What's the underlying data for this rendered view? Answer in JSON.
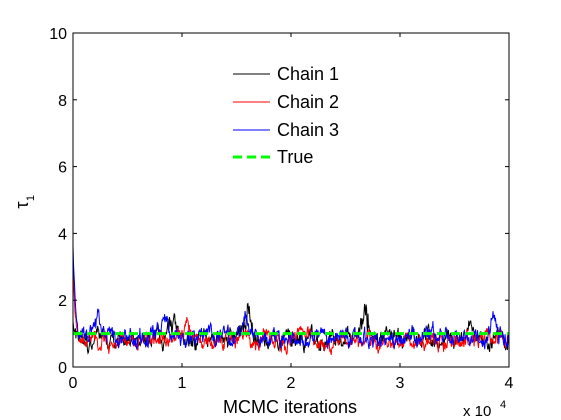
{
  "chart_data": {
    "type": "line",
    "title": "",
    "xlabel": "MCMC iterations",
    "ylabel": "τ",
    "ylabel_subscript": "1",
    "x_multiplier_base": "x 10",
    "x_multiplier_exponent": "4",
    "xlim": [
      0,
      40000
    ],
    "ylim": [
      0,
      10
    ],
    "x_ticks": [
      0,
      10000,
      20000,
      30000,
      40000
    ],
    "x_tick_labels": [
      "0",
      "1",
      "2",
      "3",
      "4"
    ],
    "y_ticks": [
      0,
      2,
      4,
      6,
      8,
      10
    ],
    "y_tick_labels": [
      "0",
      "2",
      "4",
      "6",
      "8",
      "10"
    ],
    "grid": false,
    "legend_placement": "upper-center",
    "series": [
      {
        "name": "Chain 1",
        "color": "#000000",
        "style": "solid",
        "start": 1.5,
        "mean": 0.85,
        "spread": 0.22,
        "bumps": [
          [
            16000,
            0.9
          ],
          [
            26800,
            1.2
          ],
          [
            36500,
            0.8
          ],
          [
            9200,
            0.7
          ]
        ],
        "seed": 11
      },
      {
        "name": "Chain 2",
        "color": "#ff0000",
        "style": "solid",
        "start": 3.0,
        "mean": 0.8,
        "spread": 0.2,
        "bumps": [
          [
            10500,
            0.5
          ],
          [
            21000,
            0.4
          ]
        ],
        "seed": 23
      },
      {
        "name": "Chain 3",
        "color": "#0000ff",
        "style": "solid",
        "start": 3.7,
        "mean": 0.9,
        "spread": 0.22,
        "bumps": [
          [
            2300,
            0.6
          ],
          [
            8300,
            0.6
          ],
          [
            15800,
            0.7
          ],
          [
            38500,
            0.5
          ]
        ],
        "seed": 37
      }
    ],
    "true_value": {
      "name": "True",
      "color": "#00ff00",
      "style": "dashed",
      "value": 1.0
    }
  }
}
